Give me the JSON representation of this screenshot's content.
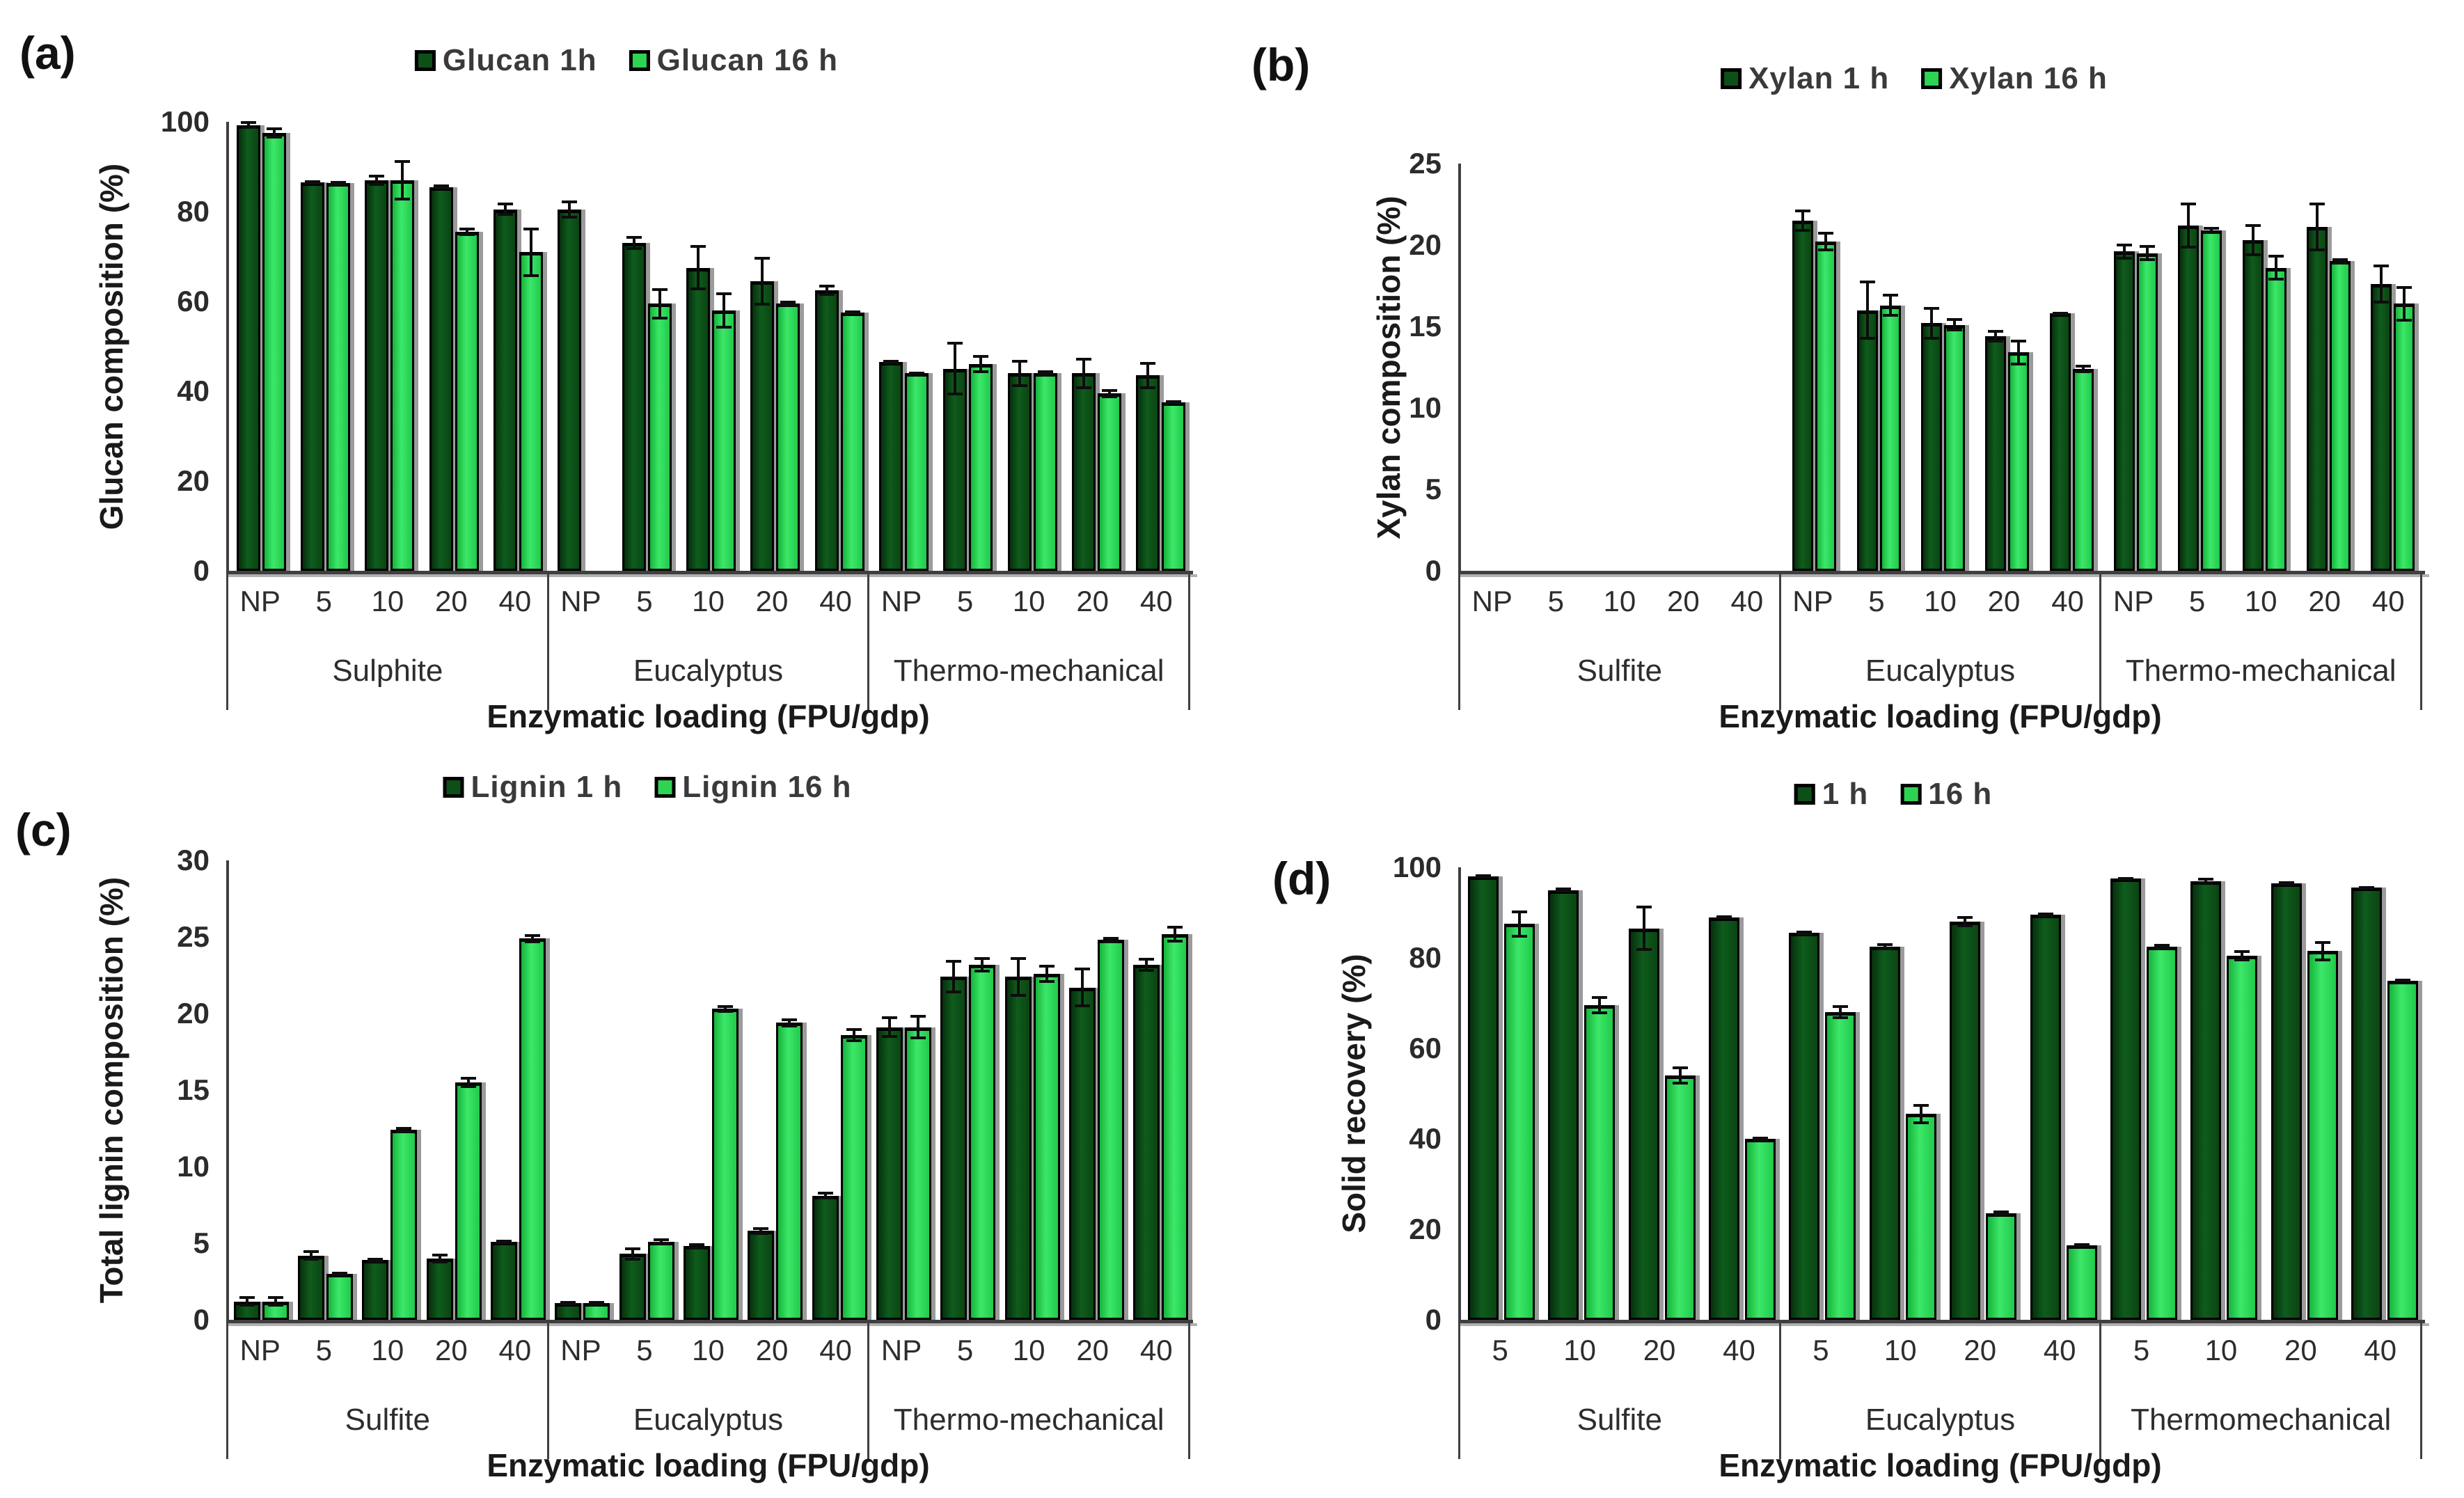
{
  "figure": {
    "background": "#ffffff"
  },
  "colors": {
    "series_1h": "#0d4f18",
    "series_16h": "#2ed353",
    "bar_border": "#000000",
    "bar_shadow": "#9b9b9b",
    "axis_line": "#3f3f3f",
    "axis_shadow": "#b0b0b0",
    "text": "#2b2b2b",
    "error_bar": "#0d0d0d"
  },
  "chart_data": [
    {
      "id": "a",
      "type": "bar",
      "panel_label": "(a)",
      "legend": [
        "Glucan 1h",
        "Glucan 16 h"
      ],
      "legend_position": "top-center",
      "grid": false,
      "ylabel": "Glucan composition (%)",
      "xlabel": "Enzymatic loading (FPU/gdp)",
      "ylim": [
        0,
        100
      ],
      "yticks": [
        0,
        20,
        40,
        60,
        80,
        100
      ],
      "groups": [
        {
          "name": "Sulphite",
          "categories": [
            "NP",
            "5",
            "10",
            "20",
            "40"
          ],
          "series": [
            {
              "name": "Glucan 1h",
              "values": [
                99.3,
                86.5,
                87,
                85.5,
                80.5
              ],
              "errors": [
                0.8,
                0.5,
                1.2,
                0.6,
                1.5
              ]
            },
            {
              "name": "Glucan 16 h",
              "values": [
                97.5,
                86.3,
                87,
                75.5,
                71
              ],
              "errors": [
                1.2,
                0.5,
                4.5,
                1.0,
                5.5
              ]
            }
          ]
        },
        {
          "name": "Eucalyptus",
          "categories": [
            "NP",
            "5",
            "10",
            "20",
            "40"
          ],
          "series": [
            {
              "name": "Glucan 1h",
              "values": [
                80.5,
                73,
                67.5,
                64.5,
                62.5
              ],
              "errors": [
                2.0,
                1.5,
                5.0,
                5.5,
                1.2
              ]
            },
            {
              "name": "Glucan 16 h",
              "values": [
                null,
                59.5,
                58,
                59.5,
                57.5
              ],
              "errors": [
                null,
                3.5,
                4.0,
                0.6,
                0.5
              ]
            }
          ]
        },
        {
          "name": "Thermo-mechanical",
          "categories": [
            "NP",
            "5",
            "10",
            "20",
            "40"
          ],
          "series": [
            {
              "name": "Glucan 1h",
              "values": [
                46.5,
                45,
                44,
                44,
                43.5
              ],
              "errors": [
                0.4,
                6.0,
                3.0,
                3.5,
                3.0
              ]
            },
            {
              "name": "Glucan 16 h",
              "values": [
                44,
                46,
                44,
                39.5,
                37.5
              ],
              "errors": [
                0.3,
                2.0,
                0.6,
                1.0,
                0.5
              ]
            }
          ]
        }
      ]
    },
    {
      "id": "b",
      "type": "bar",
      "panel_label": "(b)",
      "legend": [
        "Xylan 1 h",
        "Xylan 16 h"
      ],
      "legend_position": "top-center",
      "grid": false,
      "ylabel": "Xylan composition (%)",
      "xlabel": "Enzymatic loading (FPU/gdp)",
      "ylim": [
        0,
        25
      ],
      "yticks": [
        0,
        5,
        10,
        15,
        20,
        25
      ],
      "groups": [
        {
          "name": "Sulfite",
          "categories": [
            "NP",
            "5",
            "10",
            "20",
            "40"
          ],
          "series": [
            {
              "name": "Xylan 1 h",
              "values": [
                null,
                null,
                null,
                null,
                null
              ],
              "errors": [
                null,
                null,
                null,
                null,
                null
              ]
            },
            {
              "name": "Xylan 16 h",
              "values": [
                null,
                null,
                null,
                null,
                null
              ],
              "errors": [
                null,
                null,
                null,
                null,
                null
              ]
            }
          ]
        },
        {
          "name": "Eucalyptus",
          "categories": [
            "NP",
            "5",
            "10",
            "20",
            "40"
          ],
          "series": [
            {
              "name": "Xylan 1 h",
              "values": [
                21.5,
                16.0,
                15.2,
                14.4,
                15.8
              ],
              "errors": [
                0.7,
                1.8,
                1.0,
                0.4,
                0.1
              ]
            },
            {
              "name": "Xylan 16 h",
              "values": [
                20.2,
                16.3,
                15.1,
                13.4,
                12.4
              ],
              "errors": [
                0.6,
                0.7,
                0.4,
                0.8,
                0.25
              ]
            }
          ]
        },
        {
          "name": "Thermo-mechanical",
          "categories": [
            "NP",
            "5",
            "10",
            "20",
            "40"
          ],
          "series": [
            {
              "name": "Xylan 1 h",
              "values": [
                19.6,
                21.2,
                20.3,
                21.1,
                17.6
              ],
              "errors": [
                0.5,
                1.4,
                1.0,
                1.5,
                1.2
              ]
            },
            {
              "name": "Xylan 16 h",
              "values": [
                19.5,
                20.9,
                18.6,
                19.0,
                16.4
              ],
              "errors": [
                0.5,
                0.2,
                0.8,
                0.2,
                1.1
              ]
            }
          ]
        }
      ]
    },
    {
      "id": "c",
      "type": "bar",
      "panel_label": "(c)",
      "legend": [
        "Lignin 1 h",
        "Lignin 16 h"
      ],
      "legend_position": "top-center",
      "grid": false,
      "ylabel": "Total lignin composition (%)",
      "xlabel": "Enzymatic loading (FPU/gdp)",
      "ylim": [
        0,
        30
      ],
      "yticks": [
        0,
        5,
        10,
        15,
        20,
        25,
        30
      ],
      "groups": [
        {
          "name": "Sulfite",
          "categories": [
            "NP",
            "5",
            "10",
            "20",
            "40"
          ],
          "series": [
            {
              "name": "Lignin 1 h",
              "values": [
                1.2,
                4.2,
                3.9,
                4.0,
                5.1
              ],
              "errors": [
                0.35,
                0.35,
                0.15,
                0.3,
                0.15
              ]
            },
            {
              "name": "Lignin 16 h",
              "values": [
                1.2,
                3.0,
                12.4,
                15.5,
                24.9
              ],
              "errors": [
                0.35,
                0.15,
                0.2,
                0.35,
                0.3
              ]
            }
          ]
        },
        {
          "name": "Eucalyptus",
          "categories": [
            "NP",
            "5",
            "10",
            "20",
            "40"
          ],
          "series": [
            {
              "name": "Lignin 1 h",
              "values": [
                1.1,
                4.3,
                4.8,
                5.8,
                8.1
              ],
              "errors": [
                0.15,
                0.45,
                0.2,
                0.25,
                0.25
              ]
            },
            {
              "name": "Lignin 16 h",
              "values": [
                1.1,
                5.1,
                20.3,
                19.4,
                18.6
              ],
              "errors": [
                0.15,
                0.2,
                0.25,
                0.3,
                0.45
              ]
            }
          ]
        },
        {
          "name": "Thermo-mechanical",
          "categories": [
            "NP",
            "5",
            "10",
            "20",
            "40"
          ],
          "series": [
            {
              "name": "Lignin 1 h",
              "values": [
                19.1,
                22.4,
                22.4,
                21.7,
                23.2
              ],
              "errors": [
                0.7,
                1.1,
                1.3,
                1.3,
                0.45
              ]
            },
            {
              "name": "Lignin 16 h",
              "values": [
                19.1,
                23.2,
                22.6,
                24.8,
                25.2
              ],
              "errors": [
                0.8,
                0.5,
                0.6,
                0.2,
                0.55
              ]
            }
          ]
        }
      ]
    },
    {
      "id": "d",
      "type": "bar",
      "panel_label": "(d)",
      "legend": [
        "1 h",
        "16 h"
      ],
      "legend_position": "top-center",
      "grid": false,
      "ylabel": "Solid recovery (%)",
      "xlabel": "Enzymatic loading (FPU/gdp)",
      "ylim": [
        0,
        100
      ],
      "yticks": [
        0,
        20,
        40,
        60,
        80,
        100
      ],
      "groups": [
        {
          "name": "Sulfite",
          "categories": [
            "5",
            "10",
            "20",
            "40"
          ],
          "series": [
            {
              "name": "1 h",
              "values": [
                98,
                95,
                86.5,
                89
              ],
              "errors": [
                0.4,
                0.5,
                5.0,
                0.4
              ]
            },
            {
              "name": "16 h",
              "values": [
                87.5,
                69.5,
                54,
                40
              ],
              "errors": [
                3.0,
                2.0,
                2.0,
                0.5
              ]
            }
          ]
        },
        {
          "name": "Eucalyptus",
          "categories": [
            "5",
            "10",
            "20",
            "40"
          ],
          "series": [
            {
              "name": "1 h",
              "values": [
                85.5,
                82.5,
                88,
                89.5
              ],
              "errors": [
                0.5,
                0.8,
                1.2,
                0.5
              ]
            },
            {
              "name": "16 h",
              "values": [
                68,
                45.5,
                23.5,
                16.5
              ],
              "errors": [
                1.5,
                2.2,
                0.6,
                0.4
              ]
            }
          ]
        },
        {
          "name": "Thermomechanical",
          "categories": [
            "5",
            "10",
            "20",
            "40"
          ],
          "series": [
            {
              "name": "1 h",
              "values": [
                97.5,
                97,
                96.5,
                95.5
              ],
              "errors": [
                0.4,
                0.7,
                0.5,
                0.4
              ]
            },
            {
              "name": "16 h",
              "values": [
                82.5,
                80.5,
                81.5,
                75
              ],
              "errors": [
                0.6,
                1.2,
                2.2,
                0.4
              ]
            }
          ]
        }
      ]
    }
  ]
}
